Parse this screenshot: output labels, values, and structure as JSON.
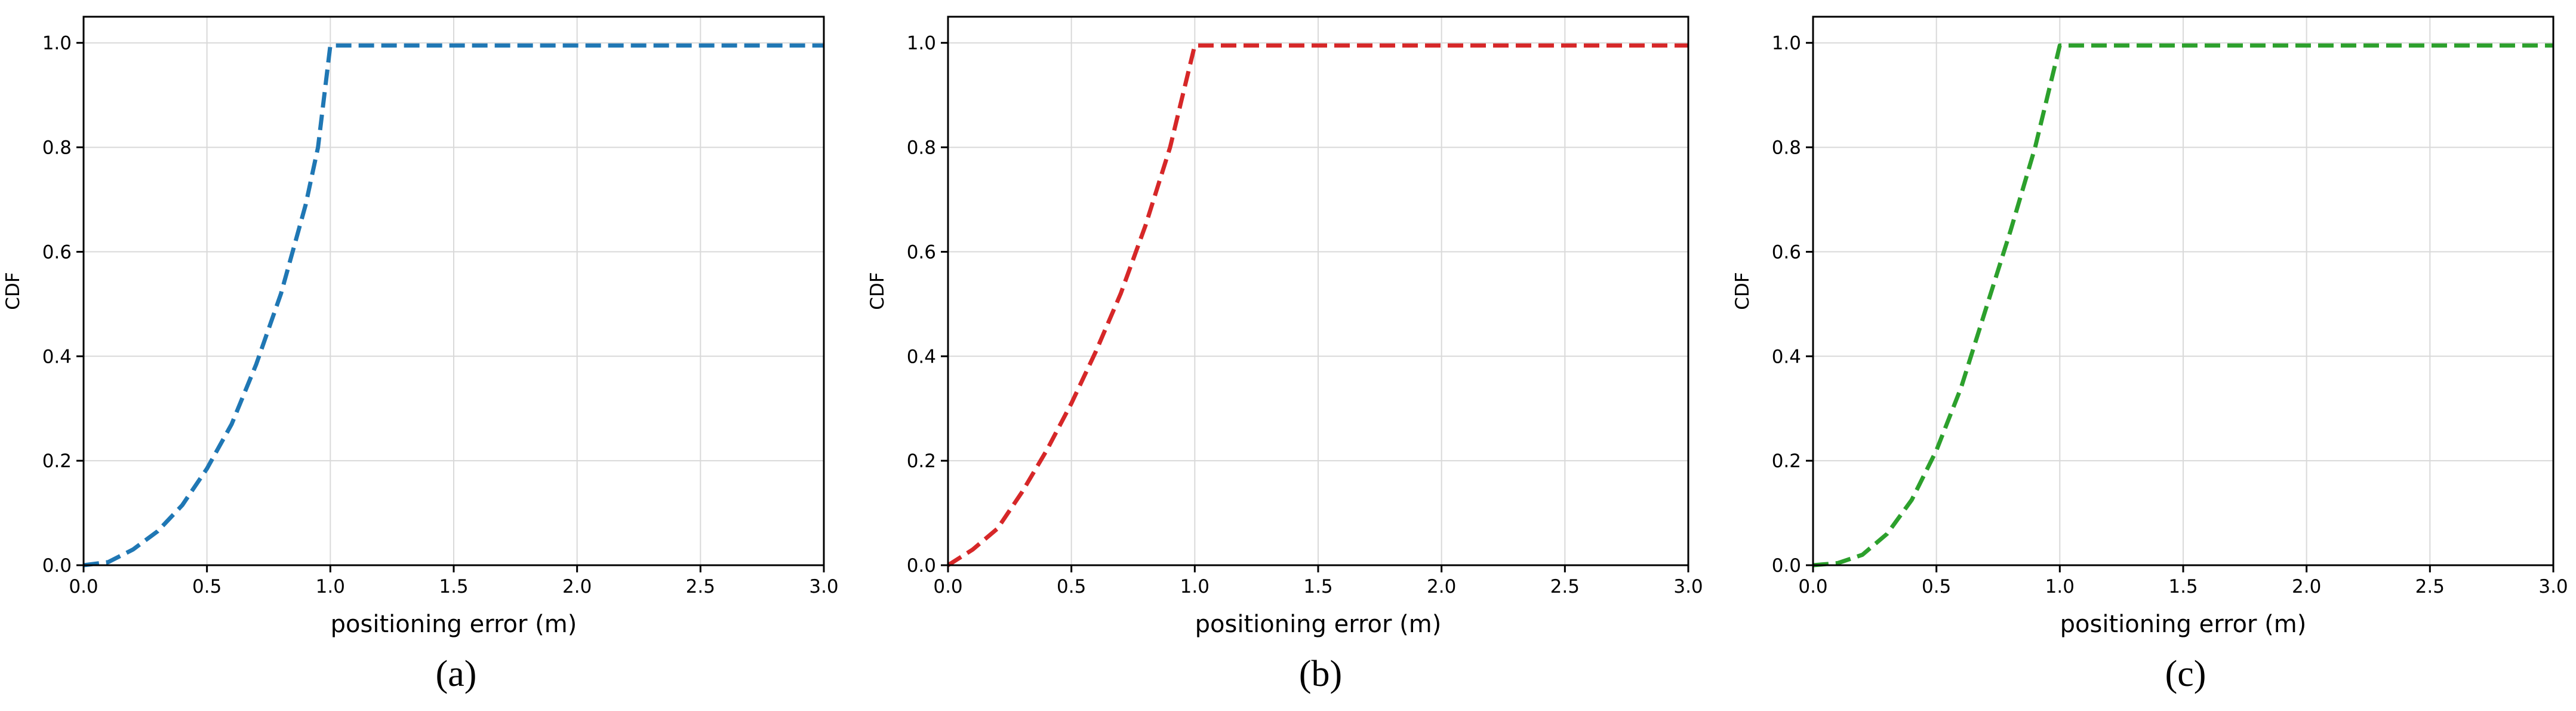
{
  "chart_data": [
    {
      "type": "line",
      "panel_label": "(a)",
      "xlabel": "positioning error (m)",
      "ylabel": "CDF",
      "xlim": [
        0.0,
        3.0
      ],
      "ylim": [
        0.0,
        1.05
      ],
      "xticks": [
        "0.0",
        "0.5",
        "1.0",
        "1.5",
        "2.0",
        "2.5",
        "3.0"
      ],
      "yticks": [
        "0.0",
        "0.2",
        "0.4",
        "0.6",
        "0.8",
        "1.0"
      ],
      "grid": true,
      "series": [
        {
          "color": "#1f77b4",
          "linestyle": "dashed",
          "x": [
            0.0,
            0.1,
            0.2,
            0.3,
            0.4,
            0.5,
            0.6,
            0.7,
            0.8,
            0.9,
            0.95,
            1.0,
            3.0
          ],
          "y": [
            0.0,
            0.006,
            0.03,
            0.065,
            0.115,
            0.185,
            0.27,
            0.385,
            0.52,
            0.69,
            0.8,
            0.995,
            0.995
          ]
        }
      ]
    },
    {
      "type": "line",
      "panel_label": "(b)",
      "xlabel": "positioning error (m)",
      "ylabel": "CDF",
      "xlim": [
        0.0,
        3.0
      ],
      "ylim": [
        0.0,
        1.05
      ],
      "xticks": [
        "0.0",
        "0.5",
        "1.0",
        "1.5",
        "2.0",
        "2.5",
        "3.0"
      ],
      "yticks": [
        "0.0",
        "0.2",
        "0.4",
        "0.6",
        "0.8",
        "1.0"
      ],
      "grid": true,
      "series": [
        {
          "color": "#d62728",
          "linestyle": "dashed",
          "x": [
            0.0,
            0.1,
            0.2,
            0.3,
            0.4,
            0.5,
            0.6,
            0.7,
            0.8,
            0.9,
            1.0,
            3.0
          ],
          "y": [
            0.0,
            0.03,
            0.07,
            0.14,
            0.22,
            0.31,
            0.41,
            0.52,
            0.65,
            0.8,
            0.995,
            0.995
          ]
        }
      ]
    },
    {
      "type": "line",
      "panel_label": "(c)",
      "xlabel": "positioning error (m)",
      "ylabel": "CDF",
      "xlim": [
        0.0,
        3.0
      ],
      "ylim": [
        0.0,
        1.05
      ],
      "xticks": [
        "0.0",
        "0.5",
        "1.0",
        "1.5",
        "2.0",
        "2.5",
        "3.0"
      ],
      "yticks": [
        "0.0",
        "0.2",
        "0.4",
        "0.6",
        "0.8",
        "1.0"
      ],
      "grid": true,
      "series": [
        {
          "color": "#2ca02c",
          "linestyle": "dashed",
          "x": [
            0.0,
            0.1,
            0.2,
            0.3,
            0.4,
            0.5,
            0.6,
            0.7,
            0.8,
            0.9,
            1.0,
            3.0
          ],
          "y": [
            0.0,
            0.004,
            0.02,
            0.06,
            0.125,
            0.22,
            0.34,
            0.49,
            0.64,
            0.8,
            0.995,
            0.995
          ]
        }
      ]
    }
  ]
}
